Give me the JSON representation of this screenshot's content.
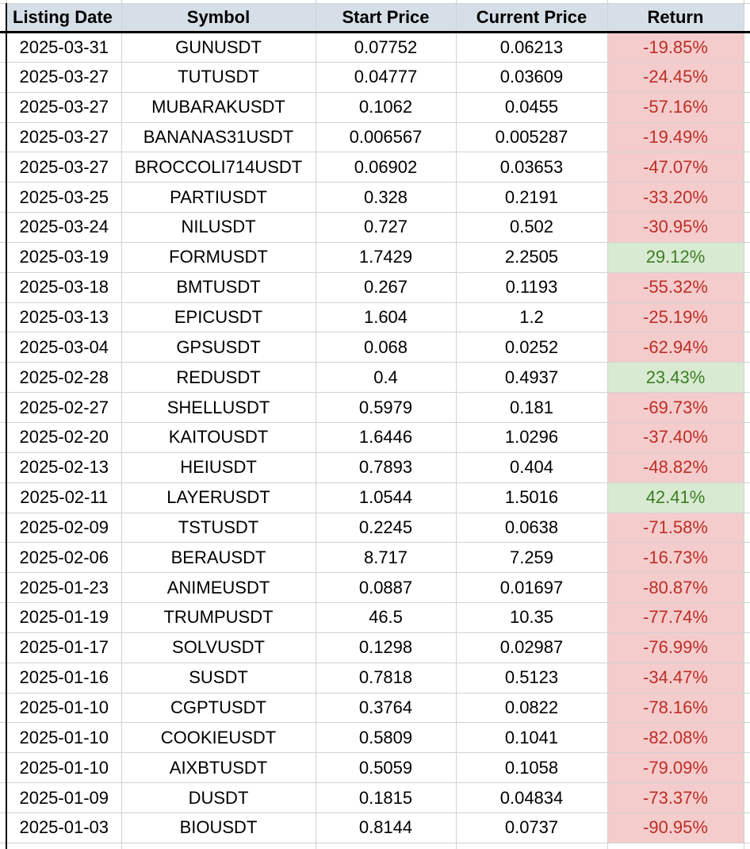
{
  "table": {
    "columns": [
      {
        "key": "date",
        "label": "Listing Date"
      },
      {
        "key": "symbol",
        "label": "Symbol"
      },
      {
        "key": "start",
        "label": "Start Price"
      },
      {
        "key": "current",
        "label": "Current Price"
      },
      {
        "key": "ret",
        "label": "Return"
      }
    ],
    "rows": [
      {
        "date": "2025-03-31",
        "symbol": "GUNUSDT",
        "start": "0.07752",
        "current": "0.06213",
        "ret": "-19.85%",
        "dir": "neg"
      },
      {
        "date": "2025-03-27",
        "symbol": "TUTUSDT",
        "start": "0.04777",
        "current": "0.03609",
        "ret": "-24.45%",
        "dir": "neg"
      },
      {
        "date": "2025-03-27",
        "symbol": "MUBARAKUSDT",
        "start": "0.1062",
        "current": "0.0455",
        "ret": "-57.16%",
        "dir": "neg"
      },
      {
        "date": "2025-03-27",
        "symbol": "BANANAS31USDT",
        "start": "0.006567",
        "current": "0.005287",
        "ret": "-19.49%",
        "dir": "neg"
      },
      {
        "date": "2025-03-27",
        "symbol": "BROCCOLI714USDT",
        "start": "0.06902",
        "current": "0.03653",
        "ret": "-47.07%",
        "dir": "neg"
      },
      {
        "date": "2025-03-25",
        "symbol": "PARTIUSDT",
        "start": "0.328",
        "current": "0.2191",
        "ret": "-33.20%",
        "dir": "neg"
      },
      {
        "date": "2025-03-24",
        "symbol": "NILUSDT",
        "start": "0.727",
        "current": "0.502",
        "ret": "-30.95%",
        "dir": "neg"
      },
      {
        "date": "2025-03-19",
        "symbol": "FORMUSDT",
        "start": "1.7429",
        "current": "2.2505",
        "ret": "29.12%",
        "dir": "pos"
      },
      {
        "date": "2025-03-18",
        "symbol": "BMTUSDT",
        "start": "0.267",
        "current": "0.1193",
        "ret": "-55.32%",
        "dir": "neg"
      },
      {
        "date": "2025-03-13",
        "symbol": "EPICUSDT",
        "start": "1.604",
        "current": "1.2",
        "ret": "-25.19%",
        "dir": "neg"
      },
      {
        "date": "2025-03-04",
        "symbol": "GPSUSDT",
        "start": "0.068",
        "current": "0.0252",
        "ret": "-62.94%",
        "dir": "neg"
      },
      {
        "date": "2025-02-28",
        "symbol": "REDUSDT",
        "start": "0.4",
        "current": "0.4937",
        "ret": "23.43%",
        "dir": "pos"
      },
      {
        "date": "2025-02-27",
        "symbol": "SHELLUSDT",
        "start": "0.5979",
        "current": "0.181",
        "ret": "-69.73%",
        "dir": "neg"
      },
      {
        "date": "2025-02-20",
        "symbol": "KAITOUSDT",
        "start": "1.6446",
        "current": "1.0296",
        "ret": "-37.40%",
        "dir": "neg"
      },
      {
        "date": "2025-02-13",
        "symbol": "HEIUSDT",
        "start": "0.7893",
        "current": "0.404",
        "ret": "-48.82%",
        "dir": "neg"
      },
      {
        "date": "2025-02-11",
        "symbol": "LAYERUSDT",
        "start": "1.0544",
        "current": "1.5016",
        "ret": "42.41%",
        "dir": "pos"
      },
      {
        "date": "2025-02-09",
        "symbol": "TSTUSDT",
        "start": "0.2245",
        "current": "0.0638",
        "ret": "-71.58%",
        "dir": "neg"
      },
      {
        "date": "2025-02-06",
        "symbol": "BERAUSDT",
        "start": "8.717",
        "current": "7.259",
        "ret": "-16.73%",
        "dir": "neg"
      },
      {
        "date": "2025-01-23",
        "symbol": "ANIMEUSDT",
        "start": "0.0887",
        "current": "0.01697",
        "ret": "-80.87%",
        "dir": "neg"
      },
      {
        "date": "2025-01-19",
        "symbol": "TRUMPUSDT",
        "start": "46.5",
        "current": "10.35",
        "ret": "-77.74%",
        "dir": "neg"
      },
      {
        "date": "2025-01-17",
        "symbol": "SOLVUSDT",
        "start": "0.1298",
        "current": "0.02987",
        "ret": "-76.99%",
        "dir": "neg"
      },
      {
        "date": "2025-01-16",
        "symbol": "SUSDT",
        "start": "0.7818",
        "current": "0.5123",
        "ret": "-34.47%",
        "dir": "neg"
      },
      {
        "date": "2025-01-10",
        "symbol": "CGPTUSDT",
        "start": "0.3764",
        "current": "0.0822",
        "ret": "-78.16%",
        "dir": "neg"
      },
      {
        "date": "2025-01-10",
        "symbol": "COOKIEUSDT",
        "start": "0.5809",
        "current": "0.1041",
        "ret": "-82.08%",
        "dir": "neg"
      },
      {
        "date": "2025-01-10",
        "symbol": "AIXBTUSDT",
        "start": "0.5059",
        "current": "0.1058",
        "ret": "-79.09%",
        "dir": "neg"
      },
      {
        "date": "2025-01-09",
        "symbol": "DUSDT",
        "start": "0.1815",
        "current": "0.04834",
        "ret": "-73.37%",
        "dir": "neg"
      },
      {
        "date": "2025-01-03",
        "symbol": "BIOUSDT",
        "start": "0.8144",
        "current": "0.0737",
        "ret": "-90.95%",
        "dir": "neg"
      }
    ]
  },
  "colors": {
    "header_bg": "#d6dfe7",
    "grid": "#d2d2d2",
    "negative_bg": "#f4cccc",
    "negative_text": "#be2d26",
    "positive_bg": "#d9ead3",
    "positive_text": "#3b7d22"
  }
}
